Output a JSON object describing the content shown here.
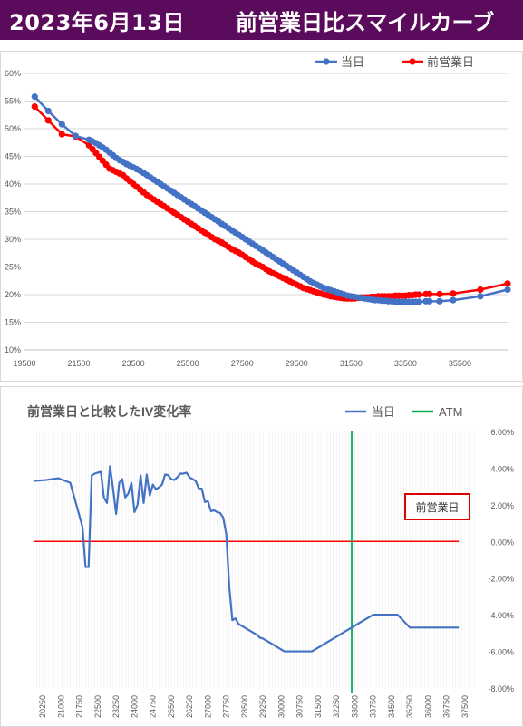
{
  "header": {
    "date": "2023年6月13日",
    "title": "前営業日比スマイルカーブ"
  },
  "colors": {
    "header_bg": "#5b0b5b",
    "today": "#4472c4",
    "prev": "#ff0000",
    "atm": "#00b050",
    "iv": "#4472c4",
    "zero_line": "#ff0000"
  },
  "chart_data": [
    {
      "type": "line",
      "title": "",
      "legend": {
        "position": "top-right",
        "items": [
          "当日",
          "前営業日"
        ]
      },
      "y_ticks": [
        "10%",
        "15%",
        "20%",
        "25%",
        "30%",
        "35%",
        "40%",
        "45%",
        "50%",
        "55%",
        "60%"
      ],
      "x_ticks": [
        "19500",
        "21500",
        "23500",
        "25500",
        "27500",
        "29500",
        "31500",
        "33500",
        "35500"
      ],
      "xlim": [
        19500,
        37250
      ],
      "ylim": [
        0.1,
        0.6
      ],
      "grid": "horizontal",
      "series": [
        {
          "name": "当日",
          "color": "#4472c4",
          "x": [
            19875,
            20375,
            20875,
            21375,
            21875,
            22000,
            22125,
            22250,
            22375,
            22500,
            22625,
            22750,
            22875,
            23000,
            23125,
            23250,
            23375,
            23500,
            23625,
            23750,
            23875,
            24000,
            24125,
            24250,
            24375,
            24500,
            24625,
            24750,
            24875,
            25000,
            25125,
            25250,
            25375,
            25500,
            25625,
            25750,
            25875,
            26000,
            26125,
            26250,
            26375,
            26500,
            26625,
            26750,
            26875,
            27000,
            27125,
            27250,
            27375,
            27500,
            27625,
            27750,
            27875,
            28000,
            28125,
            28250,
            28375,
            28500,
            28625,
            28750,
            28875,
            29000,
            29125,
            29250,
            29375,
            29500,
            29625,
            29750,
            29875,
            30000,
            30125,
            30250,
            30375,
            30500,
            30625,
            30750,
            30875,
            31000,
            31125,
            31250,
            31375,
            31500,
            31625,
            31750,
            31875,
            32000,
            32125,
            32250,
            32375,
            32500,
            32625,
            32750,
            32875,
            33000,
            33125,
            33250,
            33375,
            33500,
            33625,
            33750,
            33875,
            34000,
            34250,
            34375,
            34750,
            35250,
            36250,
            37250
          ],
          "y": [
            0.558,
            0.532,
            0.508,
            0.487,
            0.48,
            0.477,
            0.474,
            0.47,
            0.466,
            0.462,
            0.457,
            0.452,
            0.447,
            0.443,
            0.44,
            0.436,
            0.433,
            0.43,
            0.427,
            0.424,
            0.42,
            0.416,
            0.412,
            0.408,
            0.404,
            0.4,
            0.396,
            0.392,
            0.388,
            0.384,
            0.38,
            0.376,
            0.372,
            0.368,
            0.364,
            0.36,
            0.356,
            0.352,
            0.348,
            0.344,
            0.34,
            0.336,
            0.332,
            0.328,
            0.324,
            0.32,
            0.316,
            0.312,
            0.308,
            0.304,
            0.3,
            0.296,
            0.292,
            0.288,
            0.284,
            0.28,
            0.276,
            0.272,
            0.268,
            0.264,
            0.26,
            0.256,
            0.252,
            0.248,
            0.244,
            0.24,
            0.236,
            0.232,
            0.228,
            0.224,
            0.221,
            0.218,
            0.215,
            0.212,
            0.21,
            0.208,
            0.206,
            0.204,
            0.202,
            0.2,
            0.198,
            0.197,
            0.196,
            0.195,
            0.194,
            0.193,
            0.192,
            0.191,
            0.19,
            0.19,
            0.189,
            0.189,
            0.188,
            0.188,
            0.187,
            0.187,
            0.187,
            0.187,
            0.187,
            0.187,
            0.187,
            0.187,
            0.188,
            0.188,
            0.188,
            0.19,
            0.197,
            0.209
          ]
        },
        {
          "name": "前営業日",
          "color": "#ff0000",
          "x": [
            19875,
            20375,
            20875,
            21375,
            21875,
            22000,
            22125,
            22250,
            22375,
            22500,
            22625,
            22750,
            22875,
            23000,
            23125,
            23250,
            23375,
            23500,
            23625,
            23750,
            23875,
            24000,
            24125,
            24250,
            24375,
            24500,
            24625,
            24750,
            24875,
            25000,
            25125,
            25250,
            25375,
            25500,
            25625,
            25750,
            25875,
            26000,
            26125,
            26250,
            26375,
            26500,
            26625,
            26750,
            26875,
            27000,
            27125,
            27250,
            27375,
            27500,
            27625,
            27750,
            27875,
            28000,
            28125,
            28250,
            28375,
            28500,
            28625,
            28750,
            28875,
            29000,
            29125,
            29250,
            29375,
            29500,
            29625,
            29750,
            29875,
            30000,
            30125,
            30250,
            30375,
            30500,
            30625,
            30750,
            30875,
            31000,
            31125,
            31250,
            31375,
            31500,
            31625,
            31750,
            31875,
            32000,
            32125,
            32250,
            32375,
            32500,
            32625,
            32750,
            32875,
            33000,
            33125,
            33250,
            33375,
            33500,
            33625,
            33750,
            33875,
            34000,
            34250,
            34375,
            34750,
            35250,
            36250,
            37250
          ],
          "y": [
            0.54,
            0.515,
            0.49,
            0.486,
            0.47,
            0.463,
            0.456,
            0.449,
            0.442,
            0.435,
            0.428,
            0.425,
            0.422,
            0.419,
            0.416,
            0.41,
            0.405,
            0.4,
            0.395,
            0.39,
            0.385,
            0.38,
            0.376,
            0.372,
            0.368,
            0.364,
            0.36,
            0.356,
            0.352,
            0.348,
            0.344,
            0.34,
            0.336,
            0.332,
            0.328,
            0.324,
            0.32,
            0.316,
            0.312,
            0.308,
            0.304,
            0.3,
            0.297,
            0.294,
            0.29,
            0.286,
            0.282,
            0.279,
            0.276,
            0.272,
            0.268,
            0.264,
            0.26,
            0.256,
            0.253,
            0.25,
            0.246,
            0.242,
            0.239,
            0.236,
            0.233,
            0.23,
            0.227,
            0.224,
            0.221,
            0.218,
            0.215,
            0.212,
            0.21,
            0.208,
            0.206,
            0.204,
            0.202,
            0.2,
            0.199,
            0.197,
            0.196,
            0.195,
            0.194,
            0.193,
            0.193,
            0.193,
            0.193,
            0.194,
            0.195,
            0.195,
            0.195,
            0.196,
            0.196,
            0.197,
            0.197,
            0.197,
            0.197,
            0.197,
            0.198,
            0.198,
            0.198,
            0.198,
            0.199,
            0.199,
            0.2,
            0.2,
            0.201,
            0.201,
            0.201,
            0.202,
            0.209,
            0.22
          ]
        }
      ]
    },
    {
      "type": "line",
      "title": "前営業日と比較したIV変化率",
      "legend": {
        "position": "top-right",
        "items": [
          "当日",
          "ATM"
        ]
      },
      "annotation": "前営業日",
      "y_ticks": [
        "6.00%",
        "4.00%",
        "2.00%",
        "0.00%",
        "-2.00%",
        "-4.00%",
        "-6.00%",
        "-8.00%"
      ],
      "x_ticks": [
        "20250",
        "21000",
        "21750",
        "22500",
        "23250",
        "24000",
        "24750",
        "25500",
        "26250",
        "27000",
        "27750",
        "28500",
        "29250",
        "30000",
        "30750",
        "31500",
        "32250",
        "33000",
        "33750",
        "34500",
        "35250",
        "36000",
        "36750",
        "37500"
      ],
      "xlim": [
        19875,
        37875
      ],
      "ylim": [
        -0.08,
        0.06
      ],
      "atm_x": 32875,
      "grid": "vertical",
      "series": [
        {
          "name": "当日",
          "color": "#4472c4",
          "x": [
            19875,
            20375,
            20875,
            21375,
            21875,
            22000,
            22125,
            22250,
            22375,
            22500,
            22625,
            22750,
            22875,
            23000,
            23125,
            23250,
            23375,
            23500,
            23625,
            23750,
            23875,
            24000,
            24125,
            24250,
            24375,
            24500,
            24625,
            24750,
            24875,
            25000,
            25125,
            25250,
            25375,
            25500,
            25625,
            25750,
            25875,
            26000,
            26125,
            26250,
            26375,
            26500,
            26625,
            26750,
            26875,
            27000,
            27125,
            27250,
            27375,
            27500,
            27625,
            27750,
            27875,
            28000,
            28125,
            28250,
            28375,
            28500,
            28625,
            28750,
            28875,
            29000,
            29125,
            29250,
            29375,
            29500,
            29625,
            29750,
            29875,
            30000,
            30125,
            30250,
            30375,
            30500,
            30625,
            30750,
            30875,
            31000,
            31125,
            31250,
            31375,
            31500,
            31625,
            31750,
            31875,
            32000,
            32125,
            32250,
            32375,
            32500,
            32625,
            32750,
            32875,
            33000,
            33125,
            33250,
            33375,
            33500,
            33625,
            33750,
            33875,
            34000,
            34250,
            34375,
            34750,
            35250,
            36250,
            37250
          ],
          "y": [
            0.033,
            0.0335,
            0.0345,
            0.032,
            0.008,
            -0.014,
            -0.014,
            0.036,
            0.037,
            0.0375,
            0.038,
            0.024,
            0.021,
            0.041,
            0.0288,
            0.015,
            0.032,
            0.034,
            0.024,
            0.0262,
            0.032,
            0.016,
            0.02,
            0.036,
            0.021,
            0.0365,
            0.025,
            0.031,
            0.0285,
            0.0295,
            0.031,
            0.0365,
            0.0362,
            0.034,
            0.0335,
            0.035,
            0.037,
            0.037,
            0.0375,
            0.035,
            0.034,
            0.033,
            0.029,
            0.0288,
            0.0215,
            0.022,
            0.0165,
            0.017,
            0.016,
            0.0155,
            0.013,
            0.004,
            -0.025,
            -0.043,
            -0.042,
            -0.045,
            -0.046,
            -0.047,
            -0.048,
            -0.049,
            -0.05,
            -0.051,
            -0.0525,
            -0.053,
            -0.054,
            -0.055,
            -0.056,
            -0.057,
            -0.058,
            -0.059,
            -0.06,
            -0.06,
            -0.06,
            -0.06,
            -0.06,
            -0.06,
            -0.06,
            -0.06,
            -0.06,
            -0.06,
            -0.059,
            -0.058,
            -0.057,
            -0.056,
            -0.055,
            -0.054,
            -0.053,
            -0.052,
            -0.051,
            -0.05,
            -0.049,
            -0.048,
            -0.047,
            -0.046,
            -0.045,
            -0.044,
            -0.043,
            -0.042,
            -0.041,
            -0.04,
            -0.04,
            -0.04,
            -0.04,
            -0.04,
            -0.04,
            -0.047,
            -0.047,
            -0.047
          ]
        },
        {
          "name": "前営業日",
          "color": "#ff0000",
          "x": [
            19875,
            37250
          ],
          "y": [
            0.0,
            0.0
          ]
        }
      ]
    }
  ]
}
